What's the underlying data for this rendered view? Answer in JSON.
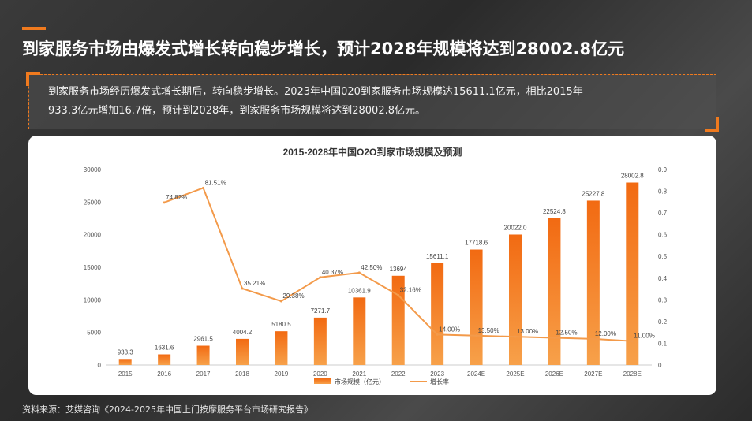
{
  "headline": "到家服务市场由爆发式增长转向稳步增长，预计2028年规模将达到28002.8亿元",
  "summary": {
    "line1": "到家服务市场经历爆发式增长期后，转向稳步增长。2023年中国020到家服务市场规模达15611.1亿元，相比2015年",
    "line2": "933.3亿元增加16.7倍，预计到2028年，到家服务市场规模将达到28002.8亿元。"
  },
  "source": "资料来源：艾媒咨询《2024-2025年中国上门按摩服务平台市场研究报告》",
  "colors": {
    "accent": "#f07a1e",
    "bar": "#f07a1e",
    "line": "#f39a4a"
  },
  "chart_data": {
    "type": "bar",
    "title": "2015-2028年中国O2O到家市场规模及预测",
    "categories": [
      "2015",
      "2016",
      "2017",
      "2018",
      "2019",
      "2020",
      "2021",
      "2022",
      "2023",
      "2024E",
      "2025E",
      "2026E",
      "2027E",
      "2028E"
    ],
    "series": [
      {
        "name": "市场规模（亿元）",
        "axis": "left",
        "type": "bar",
        "values": [
          933.3,
          1631.6,
          2961.5,
          4004.2,
          5180.5,
          7271.7,
          10361.9,
          13694,
          15611.1,
          17718.6,
          20022.0,
          22524.8,
          25227.8,
          28002.8
        ],
        "labels": [
          "933.3",
          "1631.6",
          "2961.5",
          "4004.2",
          "5180.5",
          "7271.7",
          "10361.9",
          "13694",
          "15611.1",
          "17718.6",
          "20022.0",
          "22524.8",
          "25227.8",
          "28002.8"
        ]
      },
      {
        "name": "增长率",
        "axis": "right",
        "type": "line",
        "values": [
          null,
          0.7482,
          0.8151,
          0.3521,
          0.2938,
          0.4037,
          0.425,
          0.3216,
          0.14,
          0.135,
          0.13,
          0.125,
          0.12,
          0.11
        ],
        "labels": [
          "",
          "74.82%",
          "81.51%",
          "35.21%",
          "29.38%",
          "40.37%",
          "42.50%",
          "32.16%",
          "14.00%",
          "13.50%",
          "13.00%",
          "12.50%",
          "12.00%",
          "11.00%"
        ]
      }
    ],
    "yleft": {
      "min": 0,
      "max": 30000,
      "ticks": [
        "0",
        "5000",
        "10000",
        "15000",
        "20000",
        "25000",
        "30000"
      ]
    },
    "yright": {
      "min": 0,
      "max": 0.9,
      "ticks": [
        "0",
        "0.1",
        "0.2",
        "0.3",
        "0.4",
        "0.5",
        "0.6",
        "0.7",
        "0.8",
        "0.9"
      ]
    },
    "legend": {
      "position": "bottom",
      "bar_label": "市场规模（亿元）",
      "line_label": "增长率"
    }
  }
}
